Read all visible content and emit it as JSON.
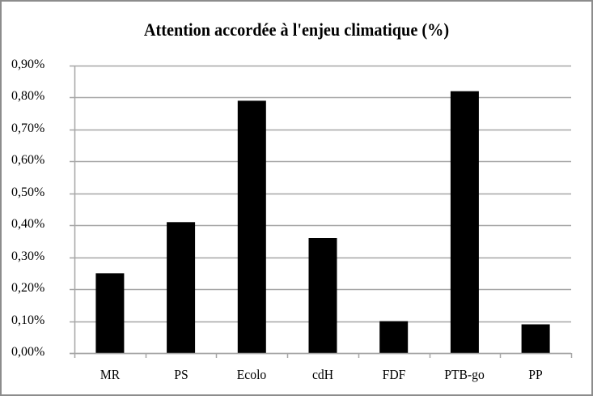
{
  "chart_data": {
    "type": "bar",
    "title": "Attention accordée à l'enjeu climatique (%)",
    "xlabel": "",
    "ylabel": "",
    "categories": [
      "MR",
      "PS",
      "Ecolo",
      "cdH",
      "FDF",
      "PTB-go",
      "PP"
    ],
    "values": [
      0.25,
      0.41,
      0.79,
      0.36,
      0.1,
      0.82,
      0.09
    ],
    "unit": "%",
    "ylim": [
      0,
      0.9
    ],
    "yticks": [
      "0,00%",
      "0,10%",
      "0,20%",
      "0,30%",
      "0,40%",
      "0,50%",
      "0,60%",
      "0,70%",
      "0,80%",
      "0,90%"
    ],
    "grid": true,
    "legend": null,
    "bar_color": "#000000",
    "grid_color": "#a6a6a6"
  }
}
